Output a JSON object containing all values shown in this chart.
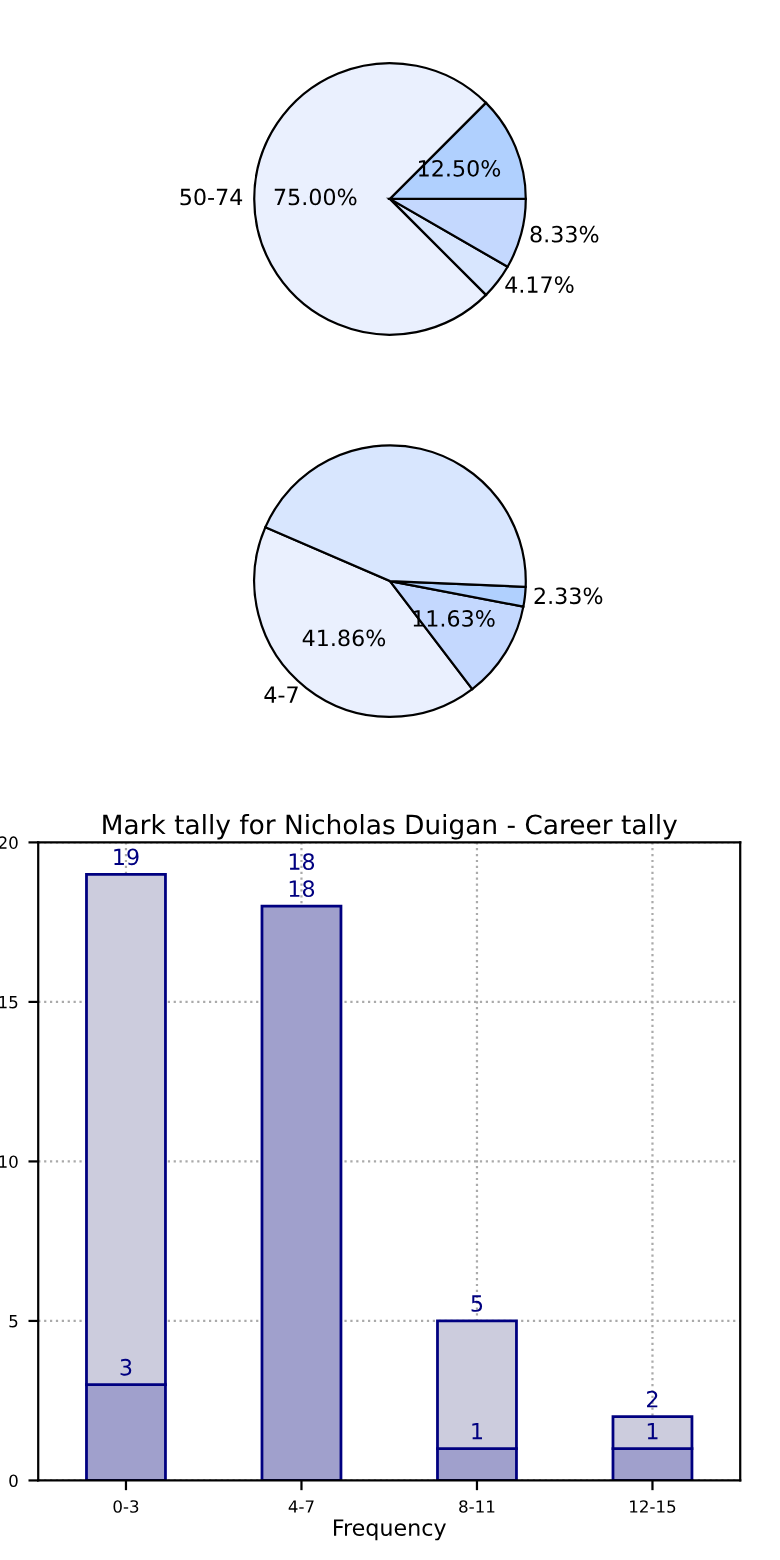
{
  "chart_data": [
    {
      "type": "pie",
      "categories": [
        "50-74",
        null,
        null,
        null
      ],
      "values": [
        75.0,
        4.17,
        8.33,
        12.5
      ],
      "colors": [
        "#eaf0fe",
        "#d8e6fe",
        "#c4d8fe",
        "#b0d0fe"
      ],
      "value_labels": [
        "75.00%",
        "4.17%",
        "8.33%",
        "12.50%"
      ]
    },
    {
      "type": "pie",
      "categories": [
        "4-7",
        null,
        null,
        null
      ],
      "values": [
        41.86,
        11.63,
        2.33,
        44.18
      ],
      "colors": [
        "#eaf0fe",
        "#c4d8fe",
        "#b0d0fe",
        "#d8e6fe"
      ],
      "value_labels": [
        "41.86%",
        "11.63%",
        "2.33%",
        null
      ]
    },
    {
      "type": "bar",
      "title": "Mark tally for Nicholas Duigan - Career tally",
      "xlabel": "Frequency",
      "categories": [
        "0-3",
        "4-7",
        "8-11",
        "12-15"
      ],
      "stacked": true,
      "series": [
        {
          "color": "#a0a0cc",
          "values": [
            3,
            18,
            1,
            1
          ],
          "value_labels": [
            "3",
            "18",
            "1",
            "1"
          ]
        },
        {
          "color": "#ccccdd",
          "values": [
            16,
            0,
            4,
            1
          ]
        }
      ],
      "totals": [
        "19",
        "18",
        "5",
        "2"
      ],
      "ylim": [
        0,
        20
      ],
      "yticks": [
        0,
        5,
        10,
        15,
        20
      ],
      "grid": true
    }
  ]
}
